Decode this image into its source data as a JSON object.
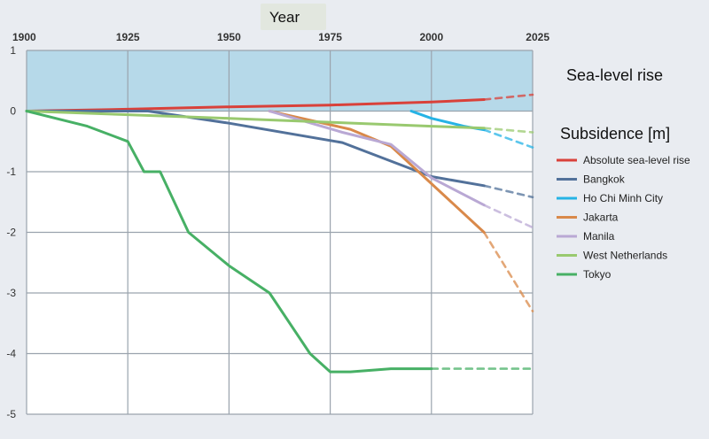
{
  "chart_data": {
    "type": "line",
    "xlabel": "Year",
    "x_ticks": [
      1900,
      1925,
      1950,
      1975,
      2000,
      2025
    ],
    "y_ticks": [
      1,
      0,
      -1,
      -2,
      -3,
      -4,
      -5
    ],
    "xlim": [
      1900,
      2025
    ],
    "ylim": [
      -5,
      1
    ],
    "sea_level_band": [
      0,
      1
    ],
    "sea_level_label": "Sea-level rise",
    "legend_title": "Subsidence [m]",
    "series": [
      {
        "name": "Absolute sea-level rise",
        "color": "#d9413a",
        "observed": [
          [
            1900,
            0
          ],
          [
            1925,
            0.03
          ],
          [
            1950,
            0.07
          ],
          [
            1975,
            0.1
          ],
          [
            2000,
            0.15
          ],
          [
            2013,
            0.19
          ]
        ],
        "projected": [
          [
            2013,
            0.19
          ],
          [
            2025,
            0.27
          ]
        ]
      },
      {
        "name": "Bangkok",
        "color": "#52719a",
        "observed": [
          [
            1900,
            0
          ],
          [
            1930,
            0
          ],
          [
            1950,
            -0.2
          ],
          [
            1978,
            -0.52
          ],
          [
            2000,
            -1.08
          ],
          [
            2013,
            -1.23
          ]
        ],
        "projected": [
          [
            2013,
            -1.23
          ],
          [
            2025,
            -1.42
          ]
        ]
      },
      {
        "name": "Ho Chi Minh City",
        "color": "#26b3e5",
        "observed": [
          [
            1995,
            0
          ],
          [
            2000,
            -0.12
          ],
          [
            2005,
            -0.2
          ],
          [
            2008,
            -0.25
          ],
          [
            2013,
            -0.31
          ]
        ],
        "projected": [
          [
            2013,
            -0.31
          ],
          [
            2025,
            -0.6
          ]
        ]
      },
      {
        "name": "Jakarta",
        "color": "#d9894a",
        "observed": [
          [
            1960,
            0
          ],
          [
            1980,
            -0.3
          ],
          [
            1990,
            -0.58
          ],
          [
            2013,
            -2.0
          ]
        ],
        "projected": [
          [
            2013,
            -2.0
          ],
          [
            2025,
            -3.3
          ]
        ]
      },
      {
        "name": "Manila",
        "color": "#b9a8d4",
        "observed": [
          [
            1960,
            0
          ],
          [
            1978,
            -0.35
          ],
          [
            1990,
            -0.55
          ],
          [
            2000,
            -1.1
          ],
          [
            2013,
            -1.55
          ]
        ],
        "projected": [
          [
            2013,
            -1.55
          ],
          [
            2025,
            -1.92
          ]
        ]
      },
      {
        "name": "West Netherlands",
        "color": "#99c96f",
        "observed": [
          [
            1900,
            0
          ],
          [
            1950,
            -0.12
          ],
          [
            2000,
            -0.25
          ],
          [
            2013,
            -0.28
          ]
        ],
        "projected": [
          [
            2013,
            -0.28
          ],
          [
            2025,
            -0.35
          ]
        ]
      },
      {
        "name": "Tokyo",
        "color": "#47b065",
        "observed": [
          [
            1900,
            0
          ],
          [
            1915,
            -0.25
          ],
          [
            1925,
            -0.5
          ],
          [
            1929,
            -1.0
          ],
          [
            1933,
            -1.0
          ],
          [
            1940,
            -2.0
          ],
          [
            1950,
            -2.55
          ],
          [
            1960,
            -3.0
          ],
          [
            1970,
            -4.0
          ],
          [
            1975,
            -4.3
          ],
          [
            1980,
            -4.3
          ],
          [
            1990,
            -4.25
          ],
          [
            2000,
            -4.25
          ]
        ],
        "projected": [
          [
            2000,
            -4.25
          ],
          [
            2025,
            -4.25
          ]
        ]
      }
    ]
  }
}
